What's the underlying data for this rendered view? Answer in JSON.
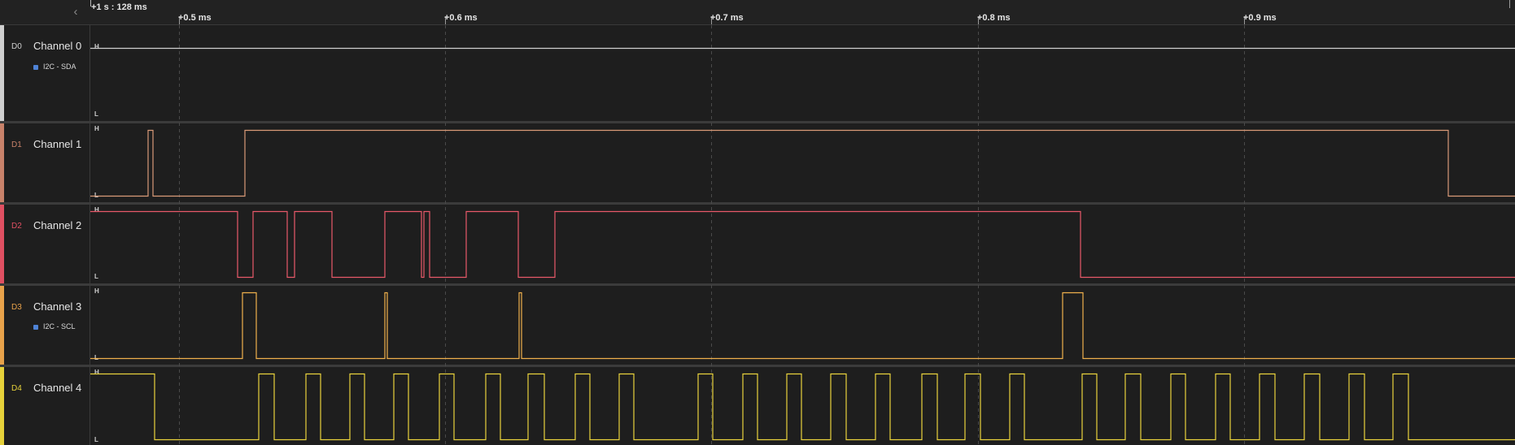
{
  "timebar": {
    "collapse_icon": "‹",
    "origin_label": "+1 s : 128 ms",
    "ticks": [
      "+0.5 ms",
      "+0.6 ms",
      "+0.7 ms",
      "+0.8 ms",
      "+0.9 ms"
    ]
  },
  "levels": {
    "high": "H",
    "low": "L"
  },
  "channels": [
    {
      "id": "D0",
      "name": "Channel 0",
      "color": "#cfcfcf",
      "wave_color": "#d0d0d0",
      "analyzer": "I2C - SDA"
    },
    {
      "id": "D1",
      "name": "Channel 1",
      "color": "#c8826a",
      "wave_color": "#d99a78",
      "analyzer": ""
    },
    {
      "id": "D2",
      "name": "Channel 2",
      "color": "#e05062",
      "wave_color": "#e8596a",
      "analyzer": ""
    },
    {
      "id": "D3",
      "name": "Channel 3",
      "color": "#e8a24a",
      "wave_color": "#efb04c",
      "analyzer": "I2C - SCL"
    },
    {
      "id": "D4",
      "name": "Channel 4",
      "color": "#e6d13a",
      "wave_color": "#e8d23c",
      "analyzer": ""
    }
  ],
  "analyzer_color": "#4f83d6"
}
